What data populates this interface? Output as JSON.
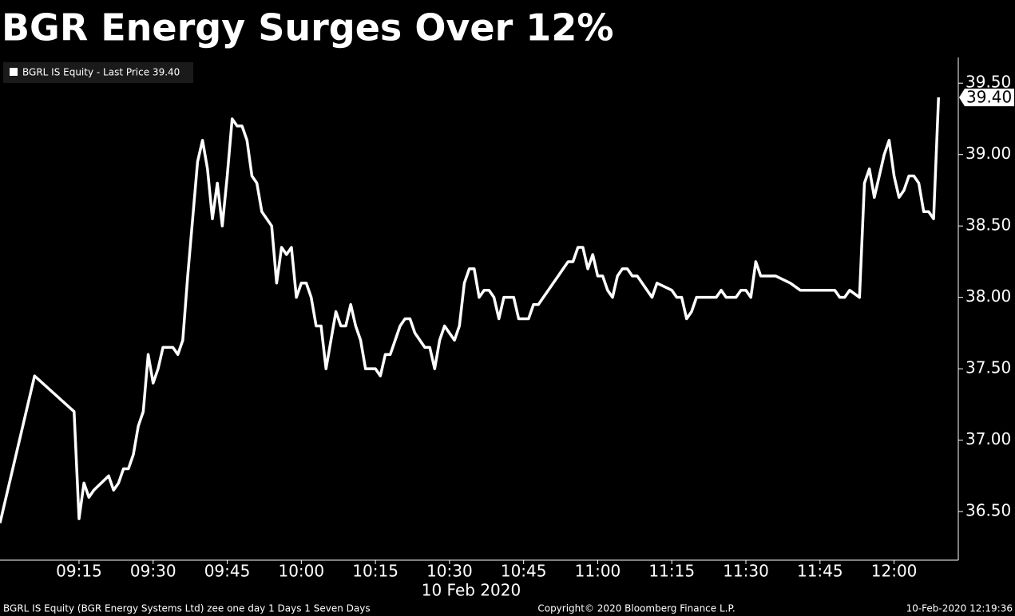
{
  "chart_data": {
    "type": "line",
    "title": "BGR Energy Surges Over 12%",
    "x_label": "10 Feb 2020",
    "footer_left": "BGRL IS Equity (BGR Energy Systems Ltd) zee one day 1 Days 1 Seven Days",
    "footer_center": "Copyright© 2020 Bloomberg Finance L.P.",
    "footer_right": "10-Feb-2020 12:19:36",
    "x": [
      539,
      546,
      554,
      555,
      556,
      557,
      558,
      561,
      562,
      563,
      564,
      565,
      566,
      567,
      568,
      569,
      570,
      571,
      572,
      574,
      575,
      576,
      577,
      578,
      579,
      580,
      581,
      582,
      583,
      584,
      585,
      586,
      587,
      588,
      589,
      590,
      591,
      592,
      594,
      595,
      596,
      597,
      598,
      599,
      600,
      601,
      602,
      603,
      604,
      605,
      606,
      607,
      608,
      609,
      610,
      611,
      612,
      613,
      615,
      616,
      617,
      618,
      619,
      620,
      621,
      622,
      623,
      624,
      625,
      626,
      627,
      628,
      629,
      631,
      632,
      633,
      634,
      635,
      636,
      637,
      638,
      639,
      640,
      641,
      643,
      644,
      646,
      647,
      648,
      649,
      650,
      651,
      652,
      653,
      654,
      655,
      656,
      657,
      658,
      659,
      660,
      661,
      662,
      663,
      664,
      665,
      666,
      667,
      668,
      669,
      670,
      671,
      672,
      675,
      676,
      677,
      678,
      679,
      680,
      684,
      685,
      686,
      688,
      689,
      690,
      691,
      692,
      693,
      696,
      699,
      701,
      708,
      709,
      710,
      711,
      713,
      714,
      715,
      716,
      717,
      718,
      719,
      720,
      721,
      722,
      723,
      724,
      725,
      726,
      727,
      728,
      729
    ],
    "series": [
      {
        "name": "BGRL IS Equity - Last Price 39.40",
        "color": "#ffffff",
        "values": [
          36.42,
          37.45,
          37.2,
          36.45,
          36.7,
          36.6,
          36.65,
          36.75,
          36.65,
          36.7,
          36.8,
          36.8,
          36.9,
          37.1,
          37.2,
          37.6,
          37.4,
          37.5,
          37.65,
          37.65,
          37.6,
          37.7,
          38.15,
          38.55,
          38.95,
          39.1,
          38.9,
          38.55,
          38.8,
          38.5,
          38.85,
          39.25,
          39.2,
          39.2,
          39.1,
          38.85,
          38.8,
          38.6,
          38.5,
          38.1,
          38.35,
          38.3,
          38.35,
          38.0,
          38.1,
          38.1,
          38.0,
          37.8,
          37.8,
          37.5,
          37.7,
          37.9,
          37.8,
          37.8,
          37.95,
          37.8,
          37.7,
          37.5,
          37.5,
          37.45,
          37.6,
          37.6,
          37.7,
          37.8,
          37.85,
          37.85,
          37.75,
          37.7,
          37.65,
          37.65,
          37.5,
          37.7,
          37.8,
          37.7,
          37.8,
          38.1,
          38.2,
          38.2,
          38.0,
          38.05,
          38.05,
          38.0,
          37.85,
          38.0,
          38.0,
          37.85,
          37.85,
          37.95,
          37.95,
          38.0,
          38.05,
          38.1,
          38.15,
          38.2,
          38.25,
          38.25,
          38.35,
          38.35,
          38.2,
          38.3,
          38.15,
          38.15,
          38.05,
          38.0,
          38.15,
          38.2,
          38.2,
          38.15,
          38.15,
          38.1,
          38.05,
          38.0,
          38.1,
          38.05,
          38.0,
          38.0,
          37.85,
          37.9,
          38.0,
          38.0,
          38.05,
          38.0,
          38.0,
          38.05,
          38.05,
          38.0,
          38.25,
          38.15,
          38.15,
          38.1,
          38.05,
          38.05,
          38.0,
          38.0,
          38.05,
          38.0,
          38.8,
          38.9,
          38.7,
          38.85,
          39.0,
          39.1,
          38.85,
          38.7,
          38.75,
          38.85,
          38.85,
          38.8,
          38.6,
          38.6,
          38.55,
          39.4
        ]
      }
    ],
    "last_price": {
      "value": 39.4,
      "label": "39.40"
    },
    "xlim": [
      539,
      733
    ],
    "xticks": [
      {
        "value": 555,
        "label": "09:15"
      },
      {
        "value": 570,
        "label": "09:30"
      },
      {
        "value": 585,
        "label": "09:45"
      },
      {
        "value": 600,
        "label": "10:00"
      },
      {
        "value": 615,
        "label": "10:15"
      },
      {
        "value": 630,
        "label": "10:30"
      },
      {
        "value": 645,
        "label": "10:45"
      },
      {
        "value": 660,
        "label": "11:00"
      },
      {
        "value": 675,
        "label": "11:15"
      },
      {
        "value": 690,
        "label": "11:30"
      },
      {
        "value": 705,
        "label": "11:45"
      },
      {
        "value": 720,
        "label": "12:00"
      }
    ],
    "ylim": [
      36.16,
      39.68
    ],
    "yticks": [
      {
        "value": 36.5,
        "label": "36.50"
      },
      {
        "value": 37,
        "label": "37.00"
      },
      {
        "value": 37.5,
        "label": "37.50"
      },
      {
        "value": 38,
        "label": "38.00"
      },
      {
        "value": 38.5,
        "label": "38.50"
      },
      {
        "value": 39,
        "label": "39.00"
      },
      {
        "value": 39.5,
        "label": "39.50"
      }
    ]
  }
}
